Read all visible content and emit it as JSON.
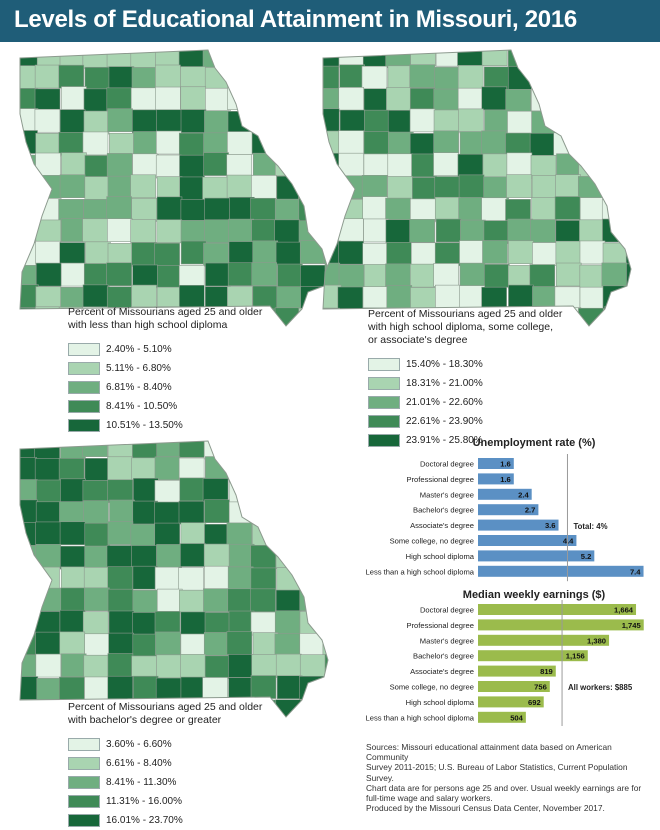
{
  "title": "Levels of Educational Attainment in Missouri, 2016",
  "maps": [
    {
      "caption_lines": [
        "Percent of Missourians aged 25 and older",
        "with less than high school diploma"
      ],
      "legend": [
        {
          "label": "2.40% - 5.10%",
          "color": "#e3f3e6"
        },
        {
          "label": "5.11% - 6.80%",
          "color": "#a9d4b1"
        },
        {
          "label": "6.81% - 8.40%",
          "color": "#6fae80"
        },
        {
          "label": "8.41% - 10.50%",
          "color": "#3f8a57"
        },
        {
          "label": "10.51% - 13.50%",
          "color": "#17673a"
        }
      ]
    },
    {
      "caption_lines": [
        "Percent of Missourians aged 25 and older",
        "with high school diploma, some college,",
        "or associate's degree"
      ],
      "legend": [
        {
          "label": "15.40% - 18.30%",
          "color": "#e3f3e6"
        },
        {
          "label": "18.31% - 21.00%",
          "color": "#a9d4b1"
        },
        {
          "label": "21.01% - 22.60%",
          "color": "#6fae80"
        },
        {
          "label": "22.61% - 23.90%",
          "color": "#3f8a57"
        },
        {
          "label": "23.91% - 25.80%",
          "color": "#17673a"
        }
      ]
    },
    {
      "caption_lines": [
        "Percent of Missourians aged 25 and older",
        "with bachelor's degree or greater"
      ],
      "legend": [
        {
          "label": "3.60% - 6.60%",
          "color": "#e3f3e6"
        },
        {
          "label": "6.61% - 8.40%",
          "color": "#a9d4b1"
        },
        {
          "label": "8.41% - 11.30%",
          "color": "#6fae80"
        },
        {
          "label": "11.31% - 16.00%",
          "color": "#3f8a57"
        },
        {
          "label": "16.01% - 23.70%",
          "color": "#17673a"
        }
      ]
    }
  ],
  "chart_data": [
    {
      "type": "bar",
      "orientation": "horizontal",
      "title": "Unemployment rate (%)",
      "categories": [
        "Doctoral degree",
        "Professional degree",
        "Master's degree",
        "Bachelor's degree",
        "Associate's degree",
        "Some college, no degree",
        "High school diploma",
        "Less than a high school diploma"
      ],
      "values": [
        1.6,
        1.6,
        2.4,
        2.7,
        3.6,
        4.4,
        5.2,
        7.4
      ],
      "value_labels": [
        "1.6",
        "1.6",
        "2.4",
        "2.7",
        "3.6",
        "4.4",
        "5.2",
        "7.4"
      ],
      "reference_value": 4,
      "reference_label": "Total: 4%",
      "xlim": [
        0,
        7.6
      ],
      "color": "#5b90c4"
    },
    {
      "type": "bar",
      "orientation": "horizontal",
      "title": "Median weekly earnings ($)",
      "categories": [
        "Doctoral degree",
        "Professional degree",
        "Master's degree",
        "Bachelor's degree",
        "Associate's degree",
        "Some college, no degree",
        "High school diploma",
        "Less than a high school diploma"
      ],
      "values": [
        1664,
        1745,
        1380,
        1156,
        819,
        756,
        692,
        504
      ],
      "value_labels": [
        "1,664",
        "1,745",
        "1,380",
        "1,156",
        "819",
        "756",
        "692",
        "504"
      ],
      "reference_value": 885,
      "reference_label": "All workers: $885",
      "xlim": [
        0,
        1790
      ],
      "color": "#9bbb4c"
    }
  ],
  "sources_lines": [
    "Sources: Missouri educational attainment data based on American Community",
    "Survey 2011-2015; U.S. Bureau of Labor Statistics, Current Population Survey.",
    "Chart data are for persons age 25 and over. Usual weekly earnings are for",
    "full-time wage and salary workers.",
    "Produced by the Missouri Census Data Center, November 2017."
  ]
}
